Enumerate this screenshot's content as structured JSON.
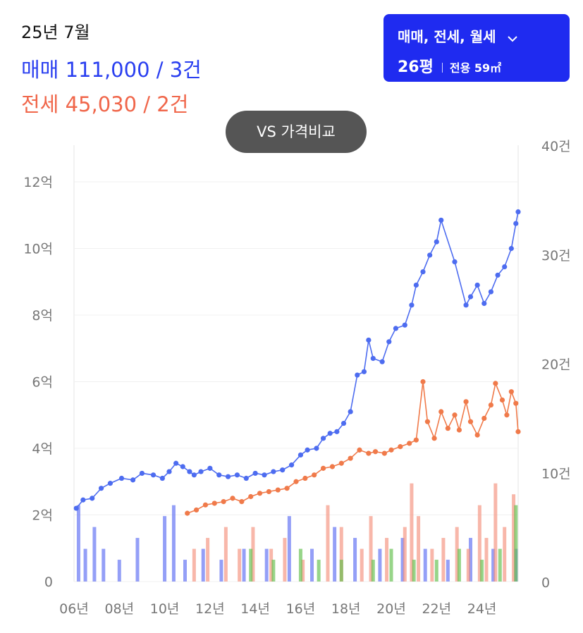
{
  "header": {
    "date": "25년 7월"
  },
  "summary": {
    "sale_label": "매매",
    "sale_value": "111,000 / 3건",
    "jeonse_label": "전세",
    "jeonse_value": "45,030 / 2건"
  },
  "filter": {
    "type_label": "매매, 전세, 월세",
    "size_label": "26평",
    "area_label": "전용 59㎡"
  },
  "compare_button": {
    "label": "VS 가격비교"
  },
  "chart_data": {
    "type": "line",
    "colors": {
      "sale": "#4d6cf0",
      "jeonse": "#f07a4a",
      "volume_sale": "#5a6cf2",
      "volume_jeonse": "#f5917c",
      "volume_monthly": "#5fbf4a"
    },
    "left_axis": {
      "ticks": [
        "0",
        "2억",
        "4억",
        "6억",
        "8억",
        "10억",
        "12억"
      ],
      "range_eok": [
        0,
        12
      ]
    },
    "right_axis": {
      "ticks": [
        "0",
        "10건",
        "20건",
        "30건",
        "40건"
      ],
      "range_count": [
        0,
        40
      ]
    },
    "x_ticks": [
      "06년",
      "08년",
      "10년",
      "12년",
      "14년",
      "16년",
      "18년",
      "20년",
      "22년",
      "24년"
    ],
    "x_range_year": [
      2006,
      2025.6
    ],
    "series": [
      {
        "key": "sale",
        "name": "매매",
        "points": [
          [
            2006.1,
            2.2
          ],
          [
            2006.4,
            2.45
          ],
          [
            2006.8,
            2.5
          ],
          [
            2007.2,
            2.8
          ],
          [
            2007.6,
            2.95
          ],
          [
            2008.1,
            3.1
          ],
          [
            2008.6,
            3.05
          ],
          [
            2009.0,
            3.25
          ],
          [
            2009.5,
            3.2
          ],
          [
            2009.9,
            3.1
          ],
          [
            2010.2,
            3.3
          ],
          [
            2010.5,
            3.55
          ],
          [
            2010.8,
            3.45
          ],
          [
            2011.1,
            3.3
          ],
          [
            2011.3,
            3.2
          ],
          [
            2011.6,
            3.3
          ],
          [
            2012.0,
            3.4
          ],
          [
            2012.4,
            3.2
          ],
          [
            2012.8,
            3.15
          ],
          [
            2013.2,
            3.2
          ],
          [
            2013.6,
            3.1
          ],
          [
            2014.0,
            3.25
          ],
          [
            2014.4,
            3.2
          ],
          [
            2014.8,
            3.3
          ],
          [
            2015.2,
            3.35
          ],
          [
            2015.6,
            3.5
          ],
          [
            2016.0,
            3.8
          ],
          [
            2016.3,
            3.95
          ],
          [
            2016.7,
            4.0
          ],
          [
            2017.0,
            4.3
          ],
          [
            2017.3,
            4.45
          ],
          [
            2017.6,
            4.5
          ],
          [
            2017.9,
            4.75
          ],
          [
            2018.2,
            5.1
          ],
          [
            2018.5,
            6.2
          ],
          [
            2018.8,
            6.3
          ],
          [
            2019.0,
            7.25
          ],
          [
            2019.2,
            6.7
          ],
          [
            2019.6,
            6.6
          ],
          [
            2019.9,
            7.2
          ],
          [
            2020.2,
            7.6
          ],
          [
            2020.6,
            7.7
          ],
          [
            2020.9,
            8.3
          ],
          [
            2021.1,
            8.9
          ],
          [
            2021.4,
            9.3
          ],
          [
            2021.7,
            9.8
          ],
          [
            2022.0,
            10.2
          ],
          [
            2022.2,
            10.85
          ],
          [
            2022.8,
            9.6
          ],
          [
            2023.3,
            8.3
          ],
          [
            2023.5,
            8.55
          ],
          [
            2023.8,
            8.9
          ],
          [
            2024.1,
            8.35
          ],
          [
            2024.4,
            8.7
          ],
          [
            2024.7,
            9.2
          ],
          [
            2025.0,
            9.45
          ],
          [
            2025.3,
            10.0
          ],
          [
            2025.5,
            10.75
          ],
          [
            2025.6,
            11.1
          ]
        ]
      },
      {
        "key": "jeonse",
        "name": "전세",
        "points": [
          [
            2011.0,
            2.05
          ],
          [
            2011.4,
            2.15
          ],
          [
            2011.8,
            2.3
          ],
          [
            2012.2,
            2.35
          ],
          [
            2012.6,
            2.4
          ],
          [
            2013.0,
            2.5
          ],
          [
            2013.4,
            2.4
          ],
          [
            2013.8,
            2.55
          ],
          [
            2014.2,
            2.65
          ],
          [
            2014.6,
            2.7
          ],
          [
            2015.0,
            2.75
          ],
          [
            2015.4,
            2.8
          ],
          [
            2015.8,
            3.0
          ],
          [
            2016.2,
            3.1
          ],
          [
            2016.6,
            3.2
          ],
          [
            2017.0,
            3.4
          ],
          [
            2017.4,
            3.45
          ],
          [
            2017.8,
            3.55
          ],
          [
            2018.2,
            3.7
          ],
          [
            2018.6,
            3.95
          ],
          [
            2019.0,
            3.85
          ],
          [
            2019.3,
            3.9
          ],
          [
            2019.7,
            3.85
          ],
          [
            2020.0,
            3.95
          ],
          [
            2020.4,
            4.05
          ],
          [
            2020.8,
            4.15
          ],
          [
            2021.1,
            4.25
          ],
          [
            2021.4,
            6.0
          ],
          [
            2021.6,
            4.8
          ],
          [
            2021.9,
            4.3
          ],
          [
            2022.2,
            5.1
          ],
          [
            2022.5,
            4.6
          ],
          [
            2022.8,
            5.0
          ],
          [
            2023.0,
            4.55
          ],
          [
            2023.3,
            5.4
          ],
          [
            2023.5,
            4.8
          ],
          [
            2023.8,
            4.4
          ],
          [
            2024.1,
            4.9
          ],
          [
            2024.4,
            5.3
          ],
          [
            2024.6,
            5.95
          ],
          [
            2024.9,
            5.45
          ],
          [
            2025.1,
            5.0
          ],
          [
            2025.3,
            5.7
          ],
          [
            2025.5,
            5.35
          ],
          [
            2025.6,
            4.5
          ]
        ]
      }
    ],
    "volume_series": [
      {
        "key": "volume_sale",
        "counts": [
          [
            2006.2,
            7
          ],
          [
            2006.5,
            3
          ],
          [
            2006.9,
            5
          ],
          [
            2007.3,
            3
          ],
          [
            2008.0,
            2
          ],
          [
            2008.8,
            4
          ],
          [
            2010.0,
            6
          ],
          [
            2010.4,
            7
          ],
          [
            2010.9,
            2
          ],
          [
            2011.7,
            3
          ],
          [
            2012.5,
            2
          ],
          [
            2013.5,
            3
          ],
          [
            2014.5,
            3
          ],
          [
            2015.5,
            6
          ],
          [
            2016.5,
            3
          ],
          [
            2017.5,
            5
          ],
          [
            2018.4,
            4
          ],
          [
            2019.5,
            3
          ],
          [
            2020.5,
            4
          ],
          [
            2021.5,
            3
          ],
          [
            2022.5,
            2
          ],
          [
            2023.5,
            4
          ],
          [
            2024.5,
            3
          ],
          [
            2025.5,
            3
          ]
        ]
      },
      {
        "key": "volume_jeonse",
        "counts": [
          [
            2011.3,
            3
          ],
          [
            2011.9,
            4
          ],
          [
            2012.7,
            5
          ],
          [
            2013.3,
            3
          ],
          [
            2013.9,
            5
          ],
          [
            2014.7,
            3
          ],
          [
            2015.3,
            4
          ],
          [
            2016.1,
            2
          ],
          [
            2017.2,
            7
          ],
          [
            2017.8,
            5
          ],
          [
            2018.7,
            3
          ],
          [
            2019.1,
            6
          ],
          [
            2019.8,
            4
          ],
          [
            2020.6,
            5
          ],
          [
            2020.9,
            9
          ],
          [
            2021.2,
            6
          ],
          [
            2021.8,
            3
          ],
          [
            2022.3,
            4
          ],
          [
            2022.9,
            5
          ],
          [
            2023.4,
            3
          ],
          [
            2023.9,
            7
          ],
          [
            2024.2,
            4
          ],
          [
            2024.6,
            9
          ],
          [
            2025.0,
            5
          ],
          [
            2025.4,
            8
          ]
        ]
      },
      {
        "key": "volume_monthly",
        "counts": [
          [
            2013.8,
            3
          ],
          [
            2014.8,
            2
          ],
          [
            2016.0,
            3
          ],
          [
            2016.8,
            2
          ],
          [
            2017.8,
            2
          ],
          [
            2019.2,
            2
          ],
          [
            2020.0,
            3
          ],
          [
            2021.0,
            2
          ],
          [
            2022.0,
            2
          ],
          [
            2023.0,
            3
          ],
          [
            2024.0,
            2
          ],
          [
            2024.8,
            3
          ],
          [
            2025.5,
            7
          ]
        ]
      }
    ]
  }
}
